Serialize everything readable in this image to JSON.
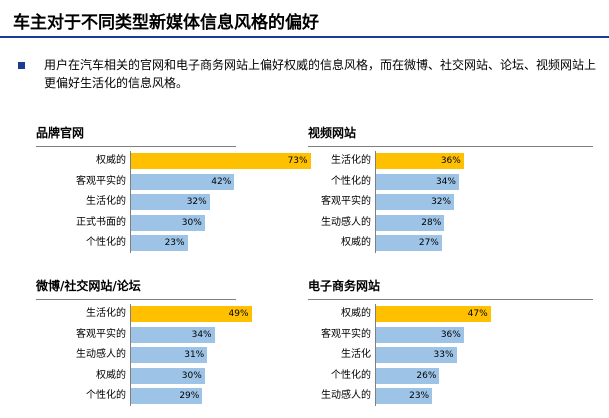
{
  "page": {
    "title": "车主对于不同类型新媒体信息风格的偏好",
    "description": "用户在汽车相关的官网和电子商务网站上偏好权威的信息风格，而在微博、社交网站、论坛、视频网站上更偏好生活化的信息风格。"
  },
  "colors": {
    "highlight_bar": "#FFC000",
    "normal_bar": "#9DC3E6",
    "title_rule": "#1F3A93"
  },
  "chart_data": [
    {
      "type": "bar",
      "orientation": "horizontal",
      "title": "品牌官网",
      "categories": [
        "权威的",
        "客观平实的",
        "生活化的",
        "正式书面的",
        "个性化的"
      ],
      "values": [
        73,
        42,
        32,
        30,
        23
      ],
      "value_labels": [
        "73%",
        "42%",
        "32%",
        "30%",
        "23%"
      ],
      "unit": "%",
      "highlight_index": 0,
      "xlim": [
        0,
        100
      ]
    },
    {
      "type": "bar",
      "orientation": "horizontal",
      "title": "视频网站",
      "categories": [
        "生活化的",
        "个性化的",
        "客观平实的",
        "生动感人的",
        "权威的"
      ],
      "values": [
        36,
        34,
        32,
        28,
        27
      ],
      "value_labels": [
        "36%",
        "34%",
        "32%",
        "28%",
        "27%"
      ],
      "unit": "%",
      "highlight_index": 0,
      "xlim": [
        0,
        100
      ]
    },
    {
      "type": "bar",
      "orientation": "horizontal",
      "title": "微博/社交网站/论坛",
      "categories": [
        "生活化的",
        "客观平实的",
        "生动感人的",
        "权威的",
        "个性化的"
      ],
      "values": [
        49,
        34,
        31,
        30,
        29
      ],
      "value_labels": [
        "49%",
        "34%",
        "31%",
        "30%",
        "29%"
      ],
      "unit": "%",
      "highlight_index": 0,
      "xlim": [
        0,
        100
      ]
    },
    {
      "type": "bar",
      "orientation": "horizontal",
      "title": "电子商务网站",
      "categories": [
        "权威的",
        "客观平实的",
        "生活化",
        "个性化的",
        "生动感人的"
      ],
      "values": [
        47,
        36,
        33,
        26,
        23
      ],
      "value_labels": [
        "47%",
        "36%",
        "33%",
        "26%",
        "23%"
      ],
      "unit": "%",
      "highlight_index": 0,
      "xlim": [
        0,
        100
      ]
    }
  ]
}
